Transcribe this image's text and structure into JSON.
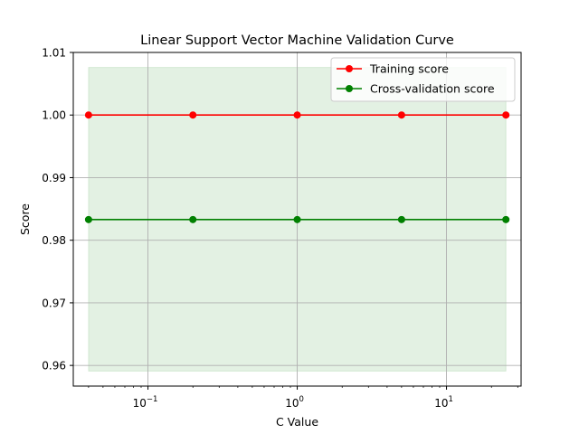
{
  "chart_data": {
    "type": "line",
    "title": "Linear Support Vector Machine Validation Curve",
    "xlabel": "C Value",
    "ylabel": "Score",
    "xscale": "log",
    "xlim": [
      0.0316,
      31.6
    ],
    "ylim": [
      0.9567,
      1.01
    ],
    "x": [
      0.04,
      0.2,
      1,
      5,
      25
    ],
    "yticks": [
      "0.96",
      "0.97",
      "0.98",
      "0.99",
      "1.00",
      "1.01"
    ],
    "ytick_values": [
      0.96,
      0.97,
      0.98,
      0.99,
      1.0,
      1.01
    ],
    "xticks": [
      {
        "value": 0.1,
        "base": "10",
        "exp": "−1"
      },
      {
        "value": 1,
        "base": "10",
        "exp": "0"
      },
      {
        "value": 10,
        "base": "10",
        "exp": "1"
      }
    ],
    "grid": true,
    "legend_position": "top-right",
    "series": [
      {
        "name": "Training score",
        "color": "#ff0000",
        "values": [
          1.0,
          1.0,
          1.0,
          1.0,
          1.0
        ],
        "band": [
          1.0,
          1.0
        ]
      },
      {
        "name": "Cross-validation score",
        "color": "#008000",
        "values": [
          0.9833,
          0.9833,
          0.9833,
          0.9833,
          0.9833
        ],
        "band": [
          0.9591,
          1.0076
        ]
      }
    ]
  }
}
